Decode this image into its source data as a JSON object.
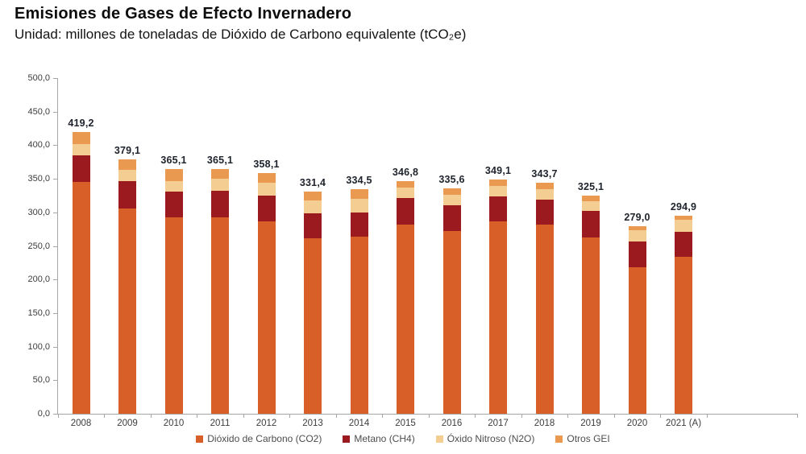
{
  "header": {
    "title": "Emisiones de Gases de Efecto Invernadero",
    "subtitle": "Unidad: millones de toneladas de Dióxido de Carbono equivalente (tCO₂e)"
  },
  "chart_data": {
    "type": "bar",
    "stacked": true,
    "title": "Emisiones de Gases de Efecto Invernadero",
    "subtitle": "Unidad: millones de toneladas de Dióxido de Carbono equivalente (tCO₂e)",
    "categories": [
      "2008",
      "2009",
      "2010",
      "2011",
      "2012",
      "2013",
      "2014",
      "2015",
      "2016",
      "2017",
      "2018",
      "2019",
      "2020",
      "2021 (A)"
    ],
    "series": [
      {
        "name": "Dióxido de Carbono (CO2)",
        "color": "#D85F28",
        "values": [
          345,
          306,
          292,
          293,
          287,
          261,
          264,
          282,
          272,
          286,
          282,
          263,
          218,
          234
        ]
      },
      {
        "name": "Metano (CH4)",
        "color": "#9B1A1F",
        "values": [
          40,
          41,
          39,
          39,
          38,
          37,
          36,
          39,
          38,
          38,
          37,
          39,
          39,
          37
        ]
      },
      {
        "name": "Óxido Nitroso (N2O)",
        "color": "#F4CD92",
        "values": [
          17,
          16,
          16,
          18,
          19,
          20,
          20,
          16,
          16,
          15,
          15,
          14,
          16,
          18
        ]
      },
      {
        "name": "Otros GEI",
        "color": "#E99A50",
        "values": [
          17.2,
          16.1,
          18.1,
          15.1,
          14.1,
          13.4,
          14.5,
          9.8,
          9.6,
          10.1,
          9.7,
          9.1,
          6.0,
          5.9
        ]
      }
    ],
    "totals": [
      419.2,
      379.1,
      365.1,
      365.1,
      358.1,
      331.4,
      334.5,
      346.8,
      335.6,
      349.1,
      343.7,
      325.1,
      279.0,
      294.9
    ],
    "total_labels": [
      "419,2",
      "379,1",
      "365,1",
      "365,1",
      "358,1",
      "331,4",
      "334,5",
      "346,8",
      "335,6",
      "349,1",
      "343,7",
      "325,1",
      "279,0",
      "294,9"
    ],
    "xlabel": "",
    "ylabel": "",
    "ylim": [
      0,
      500
    ],
    "ytick_step": 50,
    "ytick_labels": [
      "0,0",
      "50,0",
      "100,0",
      "150,0",
      "200,0",
      "250,0",
      "300,0",
      "350,0",
      "400,0",
      "450,0",
      "500,0"
    ],
    "grid": false,
    "legend_position": "bottom"
  },
  "colors": {
    "axis": "#a6a6a6",
    "value_label": "#20242d",
    "tick_label": "#3d3d3d",
    "legend_text": "#4d4d4d",
    "background": "#ffffff"
  }
}
